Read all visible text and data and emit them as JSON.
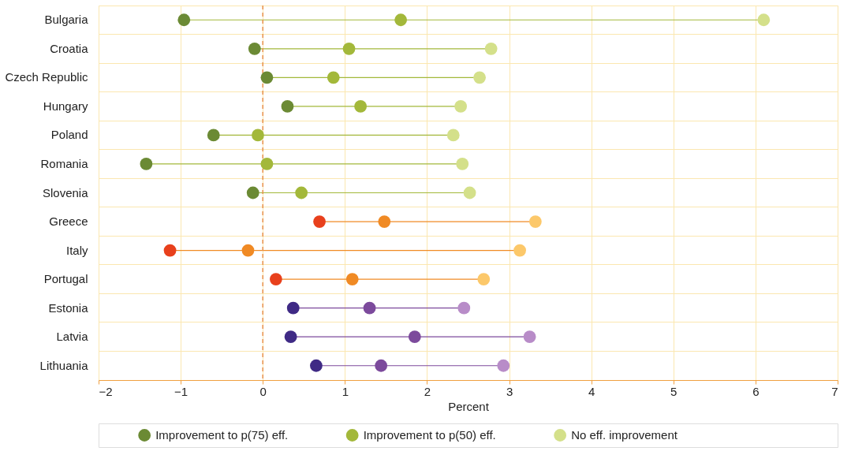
{
  "chart_data": {
    "type": "scatter",
    "orientation": "horizontal",
    "xlabel": "Percent",
    "categories": [
      "Bulgaria",
      "Croatia",
      "Czech Republic",
      "Hungary",
      "Poland",
      "Romania",
      "Slovenia",
      "Greece",
      "Italy",
      "Portugal",
      "Estonia",
      "Latvia",
      "Lithuania"
    ],
    "series": [
      {
        "name": "Improvement to p(75) eff.",
        "color": "#6b8a34",
        "colors": [
          "#6b8a34",
          "#6b8a34",
          "#6b8a34",
          "#6b8a34",
          "#6b8a34",
          "#6b8a34",
          "#6b8a34",
          "#e8401c",
          "#e8401c",
          "#e8401c",
          "#3f2a85",
          "#3f2a85",
          "#3f2a85"
        ],
        "values": [
          -0.96,
          -0.1,
          0.05,
          0.3,
          -0.6,
          -1.42,
          -0.12,
          0.69,
          -1.13,
          0.16,
          0.37,
          0.34,
          0.65
        ]
      },
      {
        "name": "Improvement to p(50) eff.",
        "color": "#a3b83a",
        "colors": [
          "#a3b83a",
          "#a3b83a",
          "#a3b83a",
          "#a3b83a",
          "#a3b83a",
          "#a3b83a",
          "#a3b83a",
          "#f08a24",
          "#f08a24",
          "#f08a24",
          "#7c4a9c",
          "#7c4a9c",
          "#7c4a9c"
        ],
        "values": [
          1.68,
          1.05,
          0.86,
          1.19,
          -0.06,
          0.05,
          0.47,
          1.48,
          -0.18,
          1.09,
          1.3,
          1.85,
          1.44
        ]
      },
      {
        "name": "No eff. improvement",
        "color": "#d4e08a",
        "colors": [
          "#d4e08a",
          "#d4e08a",
          "#d4e08a",
          "#d4e08a",
          "#d4e08a",
          "#d4e08a",
          "#d4e08a",
          "#fcc86a",
          "#fcc86a",
          "#fcc86a",
          "#b88cc8",
          "#b88cc8",
          "#b88cc8"
        ],
        "values": [
          6.1,
          2.78,
          2.64,
          2.41,
          2.32,
          2.43,
          2.52,
          3.32,
          3.13,
          2.69,
          2.45,
          3.25,
          2.93
        ]
      }
    ],
    "xlim": [
      -2,
      7
    ],
    "xticks": [
      -2,
      -1,
      0,
      1,
      2,
      3,
      4,
      5,
      6,
      7
    ],
    "ref_lines": [
      {
        "axis": "x",
        "value": 0,
        "color": "#e8904a",
        "line_style": "dashed"
      }
    ],
    "grid": true,
    "legend": "bottom",
    "marker": "circle"
  }
}
